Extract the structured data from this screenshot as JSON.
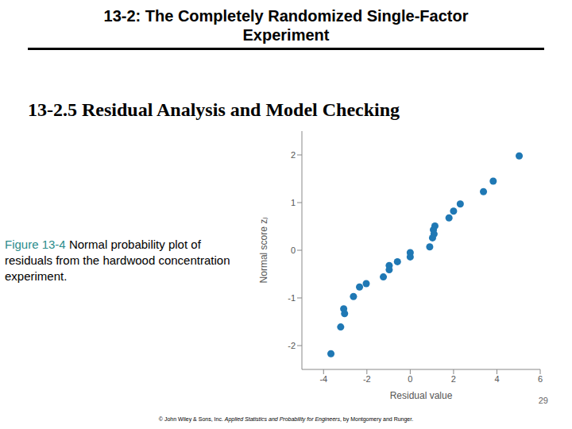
{
  "slide": {
    "title": "13-2: The Completely Randomized Single-Factor Experiment",
    "heading": "13-2.5 Residual Analysis and Model Checking",
    "caption_label": "Figure 13-4",
    "caption_text": "Normal probability plot of residuals from the hardwood concentration experiment.",
    "page": "29",
    "footer": [
      "© John Wiley & Sons, Inc. ",
      "Applied Statistics and Probability for Engineers",
      ", by Montgomery and Runger."
    ]
  },
  "chart_data": {
    "type": "scatter",
    "x_label": "Residual value",
    "y_label": "Normal score zⱼ",
    "x": [
      -3.66,
      -3.21,
      -3.07,
      -3.03,
      -2.62,
      -2.34,
      -2.03,
      -1.24,
      -0.97,
      -0.97,
      -0.59,
      0.0,
      0.0,
      0.9,
      1.03,
      1.07,
      1.1,
      1.14,
      1.79,
      2.0,
      2.31,
      3.38,
      3.83,
      5.03
    ],
    "values": [
      -2.17,
      -1.61,
      -1.23,
      -1.33,
      -0.97,
      -0.77,
      -0.7,
      -0.56,
      -0.32,
      -0.41,
      -0.24,
      -0.05,
      -0.14,
      0.07,
      0.26,
      0.43,
      0.34,
      0.51,
      0.68,
      0.82,
      0.97,
      1.23,
      1.45,
      1.98
    ],
    "xlim": [
      -5,
      6
    ],
    "xticks": [
      -4,
      -2,
      0,
      2,
      4,
      6
    ],
    "ylim": [
      -2.5,
      2.5
    ],
    "yticks": [
      -2,
      -1,
      0,
      1,
      2
    ],
    "color": "#1f78b4",
    "marker": "circle",
    "grid": false
  }
}
